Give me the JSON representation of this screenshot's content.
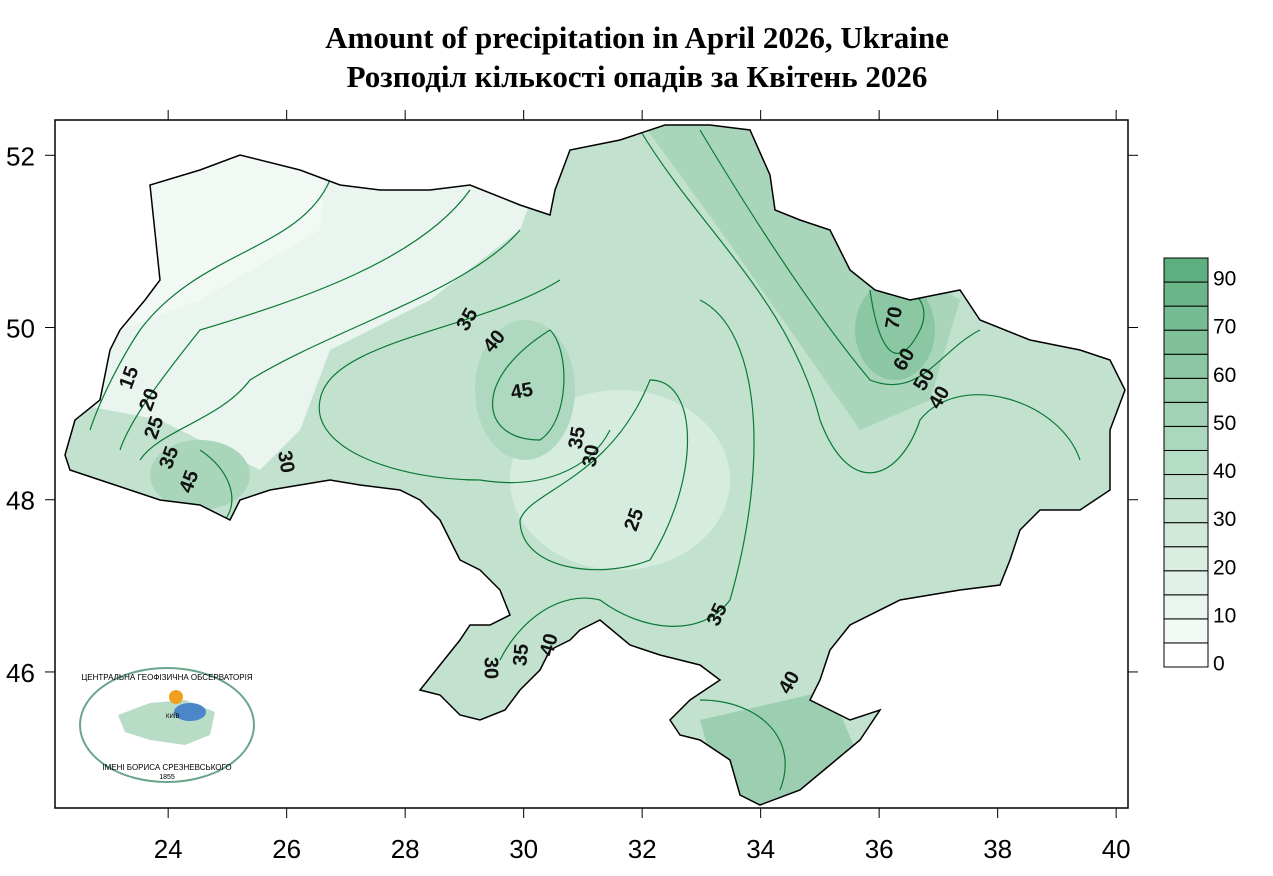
{
  "title": [
    "Amount of precipitation in April 2026, Ukraine",
    "Розподіл кількості опадів за Квітень 2026"
  ],
  "map": {
    "xlim": [
      22.09,
      40.2
    ],
    "ylim": [
      44.42,
      52.41
    ],
    "xticks": [
      24,
      26,
      28,
      30,
      32,
      34,
      36,
      38,
      40
    ],
    "yticks": [
      46,
      48,
      50,
      52
    ],
    "contour_labels": [
      15,
      20,
      25,
      35,
      45,
      30,
      35,
      40,
      45,
      35,
      30,
      25,
      35,
      30,
      35,
      40,
      40,
      70,
      60,
      50,
      40
    ]
  },
  "legend": {
    "labels": [
      0,
      10,
      20,
      30,
      40,
      50,
      60,
      70,
      90
    ],
    "colors": [
      "#ffffff",
      "#f3f9f5",
      "#eaf5ef",
      "#e2f1e8",
      "#d9ede1",
      "#d0e9da",
      "#c7e4d3",
      "#bee0cc",
      "#b5dcc5",
      "#abd7bd",
      "#a1d2b5",
      "#97cdac",
      "#8cc7a3",
      "#81c19a",
      "#76bb91",
      "#6bb588",
      "#5daf7f"
    ]
  },
  "logo": {
    "top": "ЦЕНТРАЛЬНА ГЕОФІЗИЧНА ОБСЕРВАТОРІЯ",
    "bottom": "ІМЕНІ БОРИСА СРЕЗНЕВСЬКОГО",
    "year": "1855",
    "city": "КИЇВ"
  }
}
